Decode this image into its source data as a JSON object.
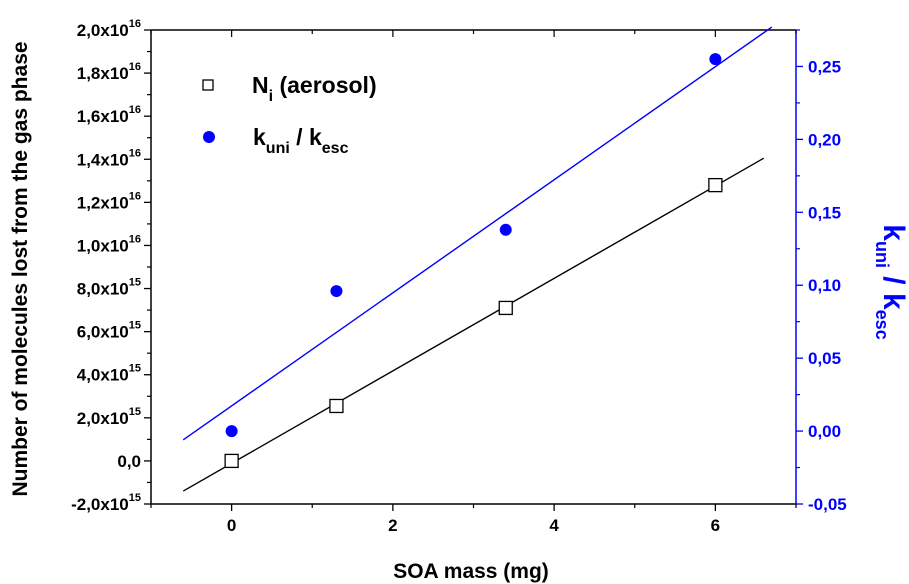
{
  "chart_data": {
    "type": "scatter",
    "xlabel": "SOA mass (mg)",
    "ylabel_left": "Number of molecules lost from the gas phase",
    "ylabel_right": {
      "main": "k",
      "sub1": "uni",
      "sep": " / k",
      "sub2": "esc"
    },
    "xlim": [
      -1,
      7
    ],
    "ylim_left": [
      -2000000000000000.0,
      2e+16
    ],
    "ylim_right": [
      -0.05,
      0.275
    ],
    "x_ticks": [
      {
        "value": 0,
        "label": "0"
      },
      {
        "value": 2,
        "label": "2"
      },
      {
        "value": 4,
        "label": "4"
      },
      {
        "value": 6,
        "label": "6"
      }
    ],
    "y_left_ticks": [
      {
        "value": -2000000000000000.0,
        "mantissa": "-2,0x10",
        "exp": "15"
      },
      {
        "value": 0,
        "mantissa": "0,0",
        "exp": ""
      },
      {
        "value": 2000000000000000.0,
        "mantissa": "2,0x10",
        "exp": "15"
      },
      {
        "value": 4000000000000000.0,
        "mantissa": "4,0x10",
        "exp": "15"
      },
      {
        "value": 6000000000000000.0,
        "mantissa": "6,0x10",
        "exp": "15"
      },
      {
        "value": 8000000000000000.0,
        "mantissa": "8,0x10",
        "exp": "15"
      },
      {
        "value": 1e+16,
        "mantissa": "1,0x10",
        "exp": "16"
      },
      {
        "value": 1.2e+16,
        "mantissa": "1,2x10",
        "exp": "16"
      },
      {
        "value": 1.4e+16,
        "mantissa": "1,4x10",
        "exp": "16"
      },
      {
        "value": 1.6e+16,
        "mantissa": "1,6x10",
        "exp": "16"
      },
      {
        "value": 1.8e+16,
        "mantissa": "1,8x10",
        "exp": "16"
      },
      {
        "value": 2e+16,
        "mantissa": "2,0x10",
        "exp": "16"
      }
    ],
    "y_right_ticks": [
      {
        "value": -0.05,
        "label": "-0,05"
      },
      {
        "value": 0.0,
        "label": "0,00"
      },
      {
        "value": 0.05,
        "label": "0,05"
      },
      {
        "value": 0.1,
        "label": "0,10"
      },
      {
        "value": 0.15,
        "label": "0,15"
      },
      {
        "value": 0.2,
        "label": "0,20"
      },
      {
        "value": 0.25,
        "label": "0,25"
      }
    ],
    "series": [
      {
        "name": "Ni (aerosol)",
        "legend_main": "N",
        "legend_sub": "i",
        "legend_rest": " (aerosol)",
        "axis": "left",
        "marker": "open-square",
        "color": "#000000",
        "points": [
          {
            "x": 0,
            "y": 0.0
          },
          {
            "x": 1.3,
            "y": 2550000000000000.0
          },
          {
            "x": 3.4,
            "y": 7100000000000000.0
          },
          {
            "x": 6.0,
            "y": 1.28e+16
          }
        ],
        "fit_line": {
          "x": [
            -0.6,
            6.6
          ],
          "y": [
            -1400000000000000.0,
            1.405e+16
          ]
        }
      },
      {
        "name": "kuni / kesc",
        "legend_main": "k",
        "legend_sub": "uni",
        "legend_sep": " / k",
        "legend_sub2": "esc",
        "axis": "right",
        "marker": "filled-circle",
        "color": "#0000ff",
        "points": [
          {
            "x": 0,
            "y": 0.0
          },
          {
            "x": 1.3,
            "y": 0.096
          },
          {
            "x": 3.4,
            "y": 0.138
          },
          {
            "x": 6.0,
            "y": 0.255
          }
        ],
        "fit_line": {
          "x": [
            -0.6,
            6.7
          ],
          "y": [
            -0.006,
            0.277
          ]
        }
      }
    ],
    "legend_position": "top-left",
    "grid": false,
    "colors": {
      "left_axis": "#000000",
      "right_axis": "#0000ff"
    }
  }
}
